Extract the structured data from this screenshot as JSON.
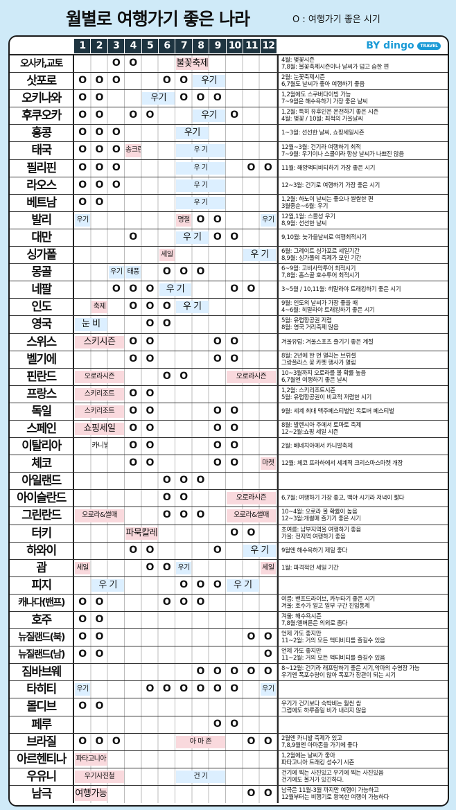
{
  "title": "월별로 여행가기 좋은 나라",
  "legend": "O : 여행가기 좋은 시기",
  "logo": {
    "by": "BY",
    "brand": "dingo",
    "tag": "TRAVEL"
  },
  "months": [
    "1",
    "2",
    "3",
    "4",
    "5",
    "6",
    "7",
    "8",
    "9",
    "10",
    "11",
    "12"
  ],
  "colors": {
    "pink": "#f9d9dd",
    "blue": "#dcefff",
    "header": "#1e3440",
    "background": "#cfeaf8"
  },
  "rows": [
    {
      "name": "오사카,교토",
      "good": [
        3,
        4
      ],
      "labels": [
        {
          "from": 7,
          "to": 8,
          "text": "불꽃축제",
          "color": "pink"
        }
      ],
      "note": [
        "4월: 벚꽃시즌",
        "7,8월: 불꽃축제시즌이나 날씨가 덥고 습한 편"
      ]
    },
    {
      "name": "삿포로",
      "good": [
        1,
        2,
        3,
        6,
        7
      ],
      "labels": [
        {
          "from": 8,
          "to": 9,
          "text": "우기",
          "color": "blue"
        }
      ],
      "note": [
        "2월: 눈꽃축제시즌",
        "6,7월도 날씨가 좋아 여행하기 좋음"
      ]
    },
    {
      "name": "오키나와",
      "good": [
        1,
        2,
        7,
        8,
        9
      ],
      "labels": [
        {
          "from": 5,
          "to": 6,
          "text": "우기",
          "color": "blue"
        }
      ],
      "note": [
        "1,2월에도 스쿠버다이빙 가능",
        "7~9월은 해수욕하기 가장 좋은 날씨"
      ]
    },
    {
      "name": "후쿠오카",
      "good": [
        1,
        2,
        4,
        5,
        10
      ],
      "labels": [
        {
          "from": 8,
          "to": 9,
          "text": "우기",
          "color": "blue"
        }
      ],
      "note": [
        "1,2월: 특히 유후인은 온천하기 좋은 시즌",
        "4월: 벚꽃 / 10월: 최적의 가을날씨"
      ]
    },
    {
      "name": "홍콩",
      "good": [
        1,
        2,
        3
      ],
      "labels": [
        {
          "from": 7,
          "to": 8,
          "text": "우기",
          "color": "blue"
        }
      ],
      "note": [
        "1~3월: 선선한 날씨, 쇼핑세일시즌"
      ]
    },
    {
      "name": "태국",
      "good": [
        1,
        2,
        3
      ],
      "labels": [
        {
          "from": 4,
          "to": 4,
          "text": "송크란",
          "color": "pink"
        },
        {
          "from": 7,
          "to": 9,
          "text": "우   기",
          "color": "blue"
        }
      ],
      "note": [
        "12월~3월: 건기라 여행하기 최적",
        "7~9월: 우기이나 스콜이라 항상 날씨가 나쁘진 않음"
      ]
    },
    {
      "name": "필리핀",
      "good": [
        1,
        2,
        3,
        11,
        12
      ],
      "labels": [
        {
          "from": 7,
          "to": 9,
          "text": "우   기",
          "color": "blue"
        }
      ],
      "note": [
        "11월: 해양액티비티하기 가장 좋은 시기"
      ]
    },
    {
      "name": "라오스",
      "good": [
        1,
        2,
        3
      ],
      "labels": [
        {
          "from": 7,
          "to": 9,
          "text": "우   기",
          "color": "blue"
        }
      ],
      "note": [
        "12~3월: 건기로 여행하기 가장 좋은 시기"
      ]
    },
    {
      "name": "베트남",
      "good": [
        1,
        2
      ],
      "labels": [
        {
          "from": 7,
          "to": 9,
          "text": "우   기",
          "color": "blue"
        }
      ],
      "note": [
        "1,2월: 하노이 날씨는 좋으나 쌀쌀한 편",
        "3월중순~6월: 우기"
      ]
    },
    {
      "name": "발리",
      "good": [
        8,
        9
      ],
      "labels": [
        {
          "from": 1,
          "to": 1,
          "text": "우기",
          "color": "blue"
        },
        {
          "from": 7,
          "to": 7,
          "text": "명절",
          "color": "pink"
        },
        {
          "from": 12,
          "to": 12,
          "text": "우기",
          "color": "blue"
        }
      ],
      "note": [
        "12월,1월: 스콜성 우기",
        "8,9월: 선선한 날씨"
      ]
    },
    {
      "name": "대만",
      "good": [
        4,
        9,
        10
      ],
      "labels": [
        {
          "from": 7,
          "to": 8,
          "text": "우 기",
          "color": "blue"
        }
      ],
      "note": [
        "9,10월: 늦가을날씨로 여행최적시기"
      ]
    },
    {
      "name": "싱가폴",
      "good": [],
      "labels": [
        {
          "from": 6,
          "to": 6,
          "text": "세일",
          "color": "pink"
        },
        {
          "from": 11,
          "to": 12,
          "text": "우 기",
          "color": "blue"
        }
      ],
      "note": [
        "6월: 그레이트 싱가포르 세일기간",
        "8,9월: 싱가폴의 축제가 모인 기간"
      ]
    },
    {
      "name": "몽골",
      "good": [
        6,
        7,
        8
      ],
      "labels": [
        {
          "from": 3,
          "to": 3,
          "text": "우기",
          "color": "blue"
        },
        {
          "from": 4,
          "to": 4,
          "text": "태풍",
          "color": "blue"
        }
      ],
      "note": [
        "6~9월: 고비사막투어 최적시기",
        "7,8월: 홉스골 호수투어 최적시기"
      ]
    },
    {
      "name": "네팔",
      "good": [
        3,
        4,
        5,
        10,
        11
      ],
      "labels": [
        {
          "from": 6,
          "to": 7,
          "text": "우 기",
          "color": "blue"
        }
      ],
      "note": [
        "3~5월 / 10,11월: 히말라야 트래킹하기 좋은 시기"
      ]
    },
    {
      "name": "인도",
      "good": [
        4,
        5,
        6
      ],
      "labels": [
        {
          "from": 2,
          "to": 2,
          "text": "축제",
          "color": "pink"
        },
        {
          "from": 7,
          "to": 8,
          "text": "우 기",
          "color": "blue"
        }
      ],
      "note": [
        "9월: 인도의 날씨가 가장 좋을 때",
        "4~6월: 히말라야 트래킹하기 좋은 시기"
      ]
    },
    {
      "name": "영국",
      "good": [
        5,
        6
      ],
      "labels": [
        {
          "from": 1,
          "to": 2,
          "text": "눈 비",
          "color": "blue"
        }
      ],
      "note": [
        "5월: 유럽항공권 저렴",
        "8월: 영국 거리축제 많음"
      ]
    },
    {
      "name": "스위스",
      "good": [
        4,
        5,
        9,
        10
      ],
      "labels": [
        {
          "from": 1,
          "to": 3,
          "text": "스키시즌",
          "color": "pink"
        }
      ],
      "note": [
        "겨울유럽: 겨울스포츠 즐기기 좋은 계절"
      ]
    },
    {
      "name": "벨기에",
      "good": [
        4,
        5,
        9,
        10
      ],
      "labels": [],
      "note": [
        "8월: 2년에 한 번 열리는 브뤼셀",
        "그랑플라스 꽃 카펫 행사가 열림"
      ]
    },
    {
      "name": "핀란드",
      "good": [
        6,
        7
      ],
      "labels": [
        {
          "from": 1,
          "to": 3,
          "text": "오로라시즌",
          "color": "pink"
        },
        {
          "from": 10,
          "to": 12,
          "text": "오로라시즌",
          "color": "pink"
        }
      ],
      "note": [
        "10~3월까지 오로라를 볼 확률 높음",
        "6,7월엔 여행하기 좋은 날씨"
      ]
    },
    {
      "name": "프랑스",
      "good": [
        4,
        5
      ],
      "labels": [
        {
          "from": 1,
          "to": 3,
          "text": "스키리조트",
          "color": "pink"
        }
      ],
      "note": [
        "1,2월: 스키리조트시즌",
        "5월: 유럽항공권이 비교적 저렴한 시기"
      ]
    },
    {
      "name": "독일",
      "good": [
        4,
        5,
        9,
        10
      ],
      "labels": [
        {
          "from": 1,
          "to": 3,
          "text": "스키리조트",
          "color": "pink"
        }
      ],
      "note": [
        "9월: 세계 최대 맥주페스티벌인 옥토버 페스티벌"
      ]
    },
    {
      "name": "스페인",
      "good": [
        4,
        5,
        9,
        10
      ],
      "labels": [
        {
          "from": 1,
          "to": 3,
          "text": "쇼핑세일",
          "color": "pink"
        }
      ],
      "note": [
        "8월: 발렌시아 주에서 토마토 축제",
        "12~2월:쇼핑 세일 시즌"
      ]
    },
    {
      "name": "이탈리아",
      "good": [
        4,
        5,
        9,
        10
      ],
      "labels": [
        {
          "from": 2,
          "to": 2,
          "text": "카니발",
          "color": "none"
        }
      ],
      "note": [
        "2월: 베네치아에서 카니발축제"
      ]
    },
    {
      "name": "체코",
      "good": [
        4,
        5,
        9,
        10
      ],
      "labels": [
        {
          "from": 12,
          "to": 12,
          "text": "마켓",
          "color": "pink"
        }
      ],
      "note": [
        "12월: 체코 프라하에서 세계적 크리스마스마켓 개장"
      ]
    },
    {
      "name": "아일랜드",
      "good": [
        6,
        7,
        8
      ],
      "labels": [],
      "note": []
    },
    {
      "name": "아이슬란드",
      "good": [
        6,
        7
      ],
      "labels": [
        {
          "from": 10,
          "to": 12,
          "text": "오로라시즌",
          "color": "pink"
        }
      ],
      "note": [
        "6,7월: 여행하기 가장 좋고, 백야 시기라 저녁이 짧다"
      ]
    },
    {
      "name": "그린란드",
      "good": [
        6,
        7,
        8
      ],
      "labels": [
        {
          "from": 1,
          "to": 3,
          "text": "오로라&썰매",
          "color": "pink"
        },
        {
          "from": 10,
          "to": 12,
          "text": "오로라&썰매",
          "color": "pink"
        }
      ],
      "note": [
        "10~4월: 오로라 볼 확률이 높음",
        "12~3월:개썰매 즐기기 좋은 시기"
      ]
    },
    {
      "name": "터키",
      "good": [
        10,
        11
      ],
      "labels": [
        {
          "from": 4,
          "to": 5,
          "text": "파묵칼레",
          "color": "pink"
        }
      ],
      "note": [
        "초여름: 남부지역을 여행하기 좋음",
        "가을: 전지역 여행하기 좋음"
      ]
    },
    {
      "name": "하와이",
      "good": [
        4,
        5,
        9
      ],
      "labels": [
        {
          "from": 11,
          "to": 12,
          "text": "우 기",
          "color": "blue"
        }
      ],
      "note": [
        "9월엔 해수욕하기 제일 좋다"
      ]
    },
    {
      "name": "괌",
      "good": [
        5,
        6
      ],
      "labels": [
        {
          "from": 1,
          "to": 1,
          "text": "세일",
          "color": "pink"
        },
        {
          "from": 7,
          "to": 7,
          "text": "우기",
          "color": "blue"
        },
        {
          "from": 12,
          "to": 12,
          "text": "세일",
          "color": "pink"
        }
      ],
      "note": [
        "1월: 파격적인 세일 기간"
      ]
    },
    {
      "name": "피지",
      "good": [
        7,
        8,
        9
      ],
      "labels": [
        {
          "from": 2,
          "to": 3,
          "text": "우 기",
          "color": "blue"
        },
        {
          "from": 10,
          "to": 11,
          "text": "우 기",
          "color": "blue"
        }
      ],
      "note": []
    },
    {
      "name": "캐나다(밴프)",
      "good": [
        1,
        2,
        6,
        7,
        8
      ],
      "labels": [],
      "note": [
        "여름: 밴프드라이브, 카누타기 좋은 시기",
        "겨울: 호수가 얼고 일부 구간 진입통제"
      ]
    },
    {
      "name": "호주",
      "good": [
        1,
        2
      ],
      "labels": [],
      "note": [
        "겨울: 해수욕시즌",
        "7,8월:멜버른은 의외로 춥다"
      ]
    },
    {
      "name": "뉴질랜드(북)",
      "good": [
        1,
        2,
        11,
        12
      ],
      "labels": [],
      "note": [
        "언제 가도 좋지만",
        "11~2월: 거의 모든 액티비티를 즐길수 있음"
      ]
    },
    {
      "name": "뉴질랜드(남)",
      "good": [
        1,
        2,
        12
      ],
      "labels": [],
      "note": [
        "언제 가도 좋지만",
        "11~2월: 거의 모든 액티비티를 즐길수 있음"
      ]
    },
    {
      "name": "짐바브웨",
      "good": [
        8,
        9,
        10,
        11,
        12
      ],
      "labels": [],
      "note": [
        "8~12월: 건기라 래프팅하기 좋은 시기,악마의 수영장 가능",
        "우기엔 폭포수량이 많아 폭포가 장관이 되는 시기"
      ]
    },
    {
      "name": "타히티",
      "good": [
        5,
        6,
        7,
        8,
        9,
        10
      ],
      "labels": [
        {
          "from": 1,
          "to": 1,
          "text": "우기",
          "color": "blue"
        },
        {
          "from": 12,
          "to": 12,
          "text": "우기",
          "color": "blue"
        }
      ],
      "note": []
    },
    {
      "name": "몰디브",
      "good": [
        1,
        2
      ],
      "labels": [],
      "note": [
        "우기가 건기보다 숙박비는 훨씬 쌈",
        "그럼에도 하루종일 비가 내리지 않음"
      ]
    },
    {
      "name": "페루",
      "good": [
        9,
        10
      ],
      "labels": [],
      "note": []
    },
    {
      "name": "브라질",
      "good": [
        1,
        2,
        3,
        11,
        12
      ],
      "labels": [
        {
          "from": 7,
          "to": 9,
          "text": "아 마 존",
          "color": "pink"
        }
      ],
      "note": [
        "2월엔 카니발 축제가 있고",
        "7,8,9월엔 아마존을 가기에 좋다"
      ]
    },
    {
      "name": "아르헨티나",
      "good": [],
      "labels": [
        {
          "from": 1,
          "to": 2,
          "text": "파타고니아",
          "color": "pink"
        }
      ],
      "note": [
        "1,2월에는 날씨가 좋아",
        "파타고니아 트래킹 성수기 시즌"
      ]
    },
    {
      "name": "우유니",
      "good": [],
      "labels": [
        {
          "from": 1,
          "to": 3,
          "text": "우기사진철",
          "color": "pink"
        },
        {
          "from": 7,
          "to": 9,
          "text": "건   기",
          "color": "blue"
        }
      ],
      "note": [
        "건기에 찍는 사진있고 우기에 찍는 사진있음",
        "건기에도 볼거가 있긴하다."
      ]
    },
    {
      "name": "남극",
      "good": [
        11,
        12
      ],
      "labels": [
        {
          "from": 1,
          "to": 2,
          "text": "여행가능",
          "color": "pink"
        }
      ],
      "note": [
        "남극은 11월-3월 까지만 여행이 가능하고",
        "12월부터는 비행기로 왕복한 여행이 가능하다"
      ]
    }
  ]
}
